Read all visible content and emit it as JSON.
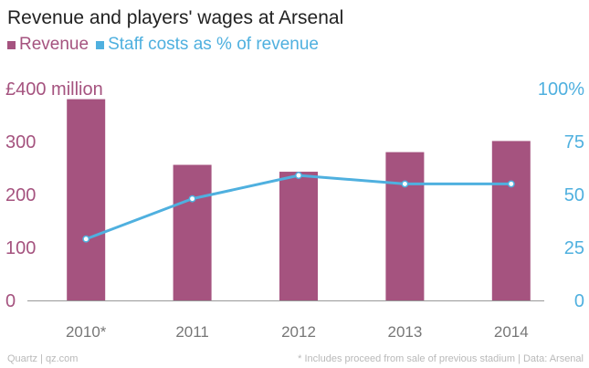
{
  "title": "Revenue and players' wages at Arsenal",
  "legend": [
    {
      "label": "Revenue",
      "color": "#a5537f"
    },
    {
      "label": "Staff costs as % of revenue",
      "color": "#4fb0df"
    }
  ],
  "footer": {
    "source_left": "Quartz | qz.com",
    "note_right": "* Includes proceed from sale of previous stadium | Data: Arsenal"
  },
  "chart_data": {
    "type": "bar",
    "categories": [
      "2010*",
      "2011",
      "2012",
      "2013",
      "2014"
    ],
    "series": [
      {
        "name": "Revenue",
        "type": "bar",
        "axis": "left",
        "color": "#a5537f",
        "values": [
          380,
          256,
          243,
          280,
          301
        ]
      },
      {
        "name": "Staff costs as % of revenue",
        "type": "line",
        "axis": "right",
        "color": "#4fb0df",
        "values": [
          29,
          48,
          59,
          55,
          55
        ]
      }
    ],
    "left_axis": {
      "ticks": [
        0,
        100,
        200,
        300,
        400
      ],
      "tick_labels": [
        "0",
        "100",
        "200",
        "300",
        "£400 million"
      ],
      "ylim": [
        0,
        400
      ],
      "color": "#a5537f"
    },
    "right_axis": {
      "ticks": [
        0,
        25,
        50,
        75,
        100
      ],
      "tick_labels": [
        "0",
        "25",
        "50",
        "75",
        "100%"
      ],
      "ylim": [
        0,
        100
      ],
      "color": "#4fb0df"
    },
    "grid": false,
    "legend_position": "top-left"
  }
}
